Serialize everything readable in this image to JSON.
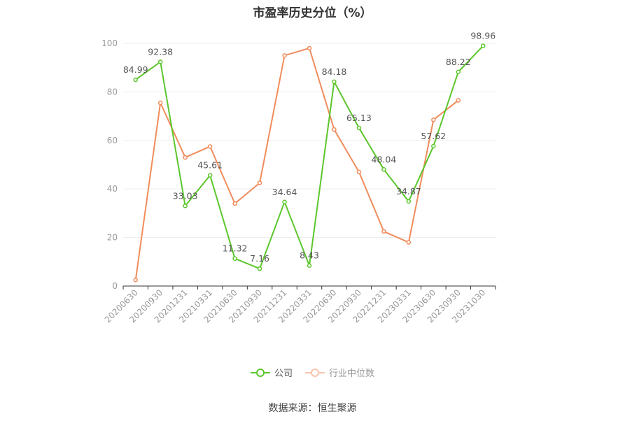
{
  "chart_data": {
    "type": "line",
    "title": "市盈率历史分位（%）",
    "categories": [
      "20200630",
      "20200930",
      "20201231",
      "20210331",
      "20210630",
      "20210930",
      "20211231",
      "20220331",
      "20220630",
      "20220930",
      "20221231",
      "20230331",
      "20230630",
      "20230930",
      "20231030"
    ],
    "series": [
      {
        "name": "公司",
        "color": "#5cc62c",
        "values": [
          84.99,
          92.38,
          33.03,
          45.61,
          11.32,
          7.16,
          34.64,
          8.43,
          84.18,
          65.13,
          48.04,
          34.87,
          57.62,
          88.22,
          98.96
        ],
        "labels": [
          "84.99",
          "92.38",
          "33.03",
          "45.61",
          "11.32",
          "7.16",
          "34.64",
          "8.43",
          "84.18",
          "65.13",
          "48.04",
          "34.87",
          "57.62",
          "88.22",
          "98.96"
        ]
      },
      {
        "name": "行业中位数",
        "color": "#f08c5c",
        "values": [
          2.5,
          75.5,
          53,
          57.5,
          34,
          42.5,
          95,
          98,
          64.5,
          47,
          22.5,
          18,
          68.5,
          76.5,
          null
        ]
      }
    ],
    "yticks": [
      "0",
      "20",
      "40",
      "60",
      "80",
      "100"
    ],
    "ylim": [
      0,
      100
    ],
    "grid": true,
    "legend": "bottom"
  },
  "footer": {
    "source": "数据来源：恒生聚源"
  }
}
